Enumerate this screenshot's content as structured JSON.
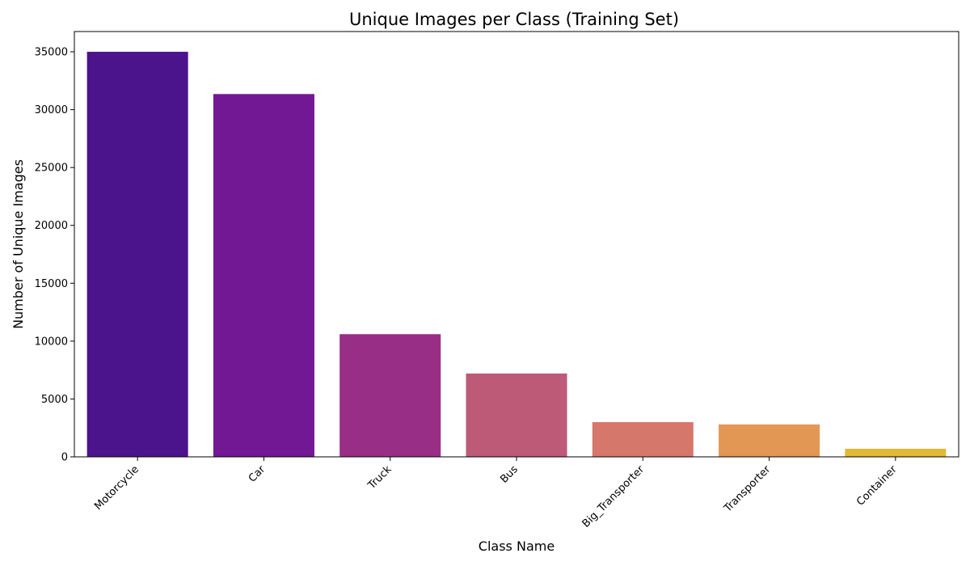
{
  "chart_data": {
    "type": "bar",
    "title": "Unique Images per Class (Training Set)",
    "xlabel": "Class Name",
    "ylabel": "Number of Unique Images",
    "categories": [
      "Motorcycle",
      "Car",
      "Truck",
      "Bus",
      "Big_Transporter",
      "Transporter",
      "Container"
    ],
    "values": [
      35000,
      31350,
      10600,
      7200,
      3000,
      2800,
      700
    ],
    "colors": [
      "#4c148c",
      "#731895",
      "#982e85",
      "#bd5a77",
      "#d6776b",
      "#e39755",
      "#e2b935"
    ],
    "ylim": [
      0,
      36750
    ],
    "yticks": [
      0,
      5000,
      10000,
      15000,
      20000,
      25000,
      30000,
      35000
    ],
    "grid": false,
    "legend": "none"
  }
}
